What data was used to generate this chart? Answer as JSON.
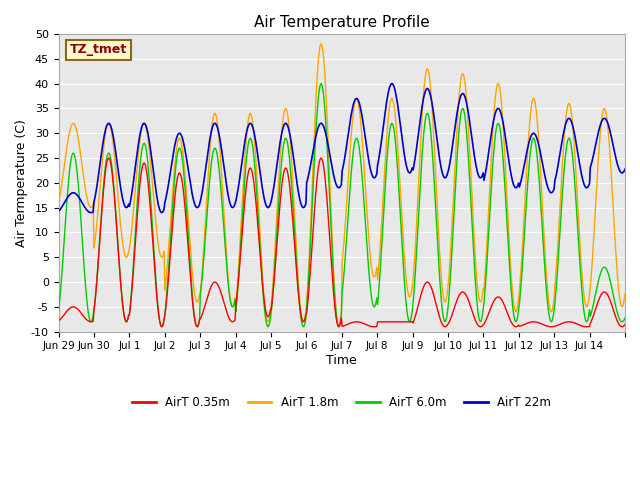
{
  "title": "Air Temperature Profile",
  "xlabel": "Time",
  "ylabel": "Air Termperature (C)",
  "ylim": [
    -10,
    50
  ],
  "n_days": 16,
  "annotation_text": "TZ_tmet",
  "annotation_color": "#8B0000",
  "annotation_bg": "#FFFACD",
  "annotation_border": "#8B6914",
  "legend_labels": [
    "AirT 0.35m",
    "AirT 1.8m",
    "AirT 6.0m",
    "AirT 22m"
  ],
  "colors": {
    "red": "#FF0000",
    "orange": "#FFA500",
    "green": "#00CC00",
    "blue": "#0000CC"
  },
  "bg_color": "#E8E8E8",
  "grid_color": "#FFFFFF",
  "xtick_positions": [
    0,
    1,
    2,
    3,
    4,
    5,
    6,
    7,
    8,
    9,
    10,
    11,
    12,
    13,
    14,
    15,
    16
  ],
  "xtick_labels": [
    "Jun 29",
    "Jun 30",
    "Jul 1",
    "Jul 2",
    "Jul 3",
    "Jul 4",
    "Jul 5",
    "Jul 6",
    "Jul 7",
    "Jul 8",
    "Jul 9",
    "Jul 10",
    "Jul 11",
    "Jul 12",
    "Jul 13",
    "Jul 14",
    ""
  ],
  "ytick_vals": [
    -10,
    -5,
    0,
    5,
    10,
    15,
    20,
    25,
    30,
    35,
    40,
    45,
    50
  ],
  "day_peaks_035": [
    -5,
    25,
    24,
    22,
    0,
    23,
    23,
    25,
    -8,
    -8,
    0,
    -2,
    -3,
    -8,
    -8,
    -2
  ],
  "day_peaks_18": [
    32,
    32,
    32,
    29,
    34,
    34,
    35,
    48,
    37,
    37,
    43,
    42,
    40,
    37,
    36,
    35
  ],
  "day_peaks_60": [
    26,
    26,
    28,
    27,
    27,
    29,
    29,
    40,
    29,
    32,
    34,
    35,
    32,
    29,
    29,
    3
  ],
  "day_peaks_22m": [
    18,
    32,
    32,
    30,
    32,
    32,
    32,
    32,
    37,
    40,
    39,
    38,
    35,
    30,
    33,
    33
  ],
  "day_mins_035": [
    -8,
    -8,
    -9,
    -9,
    -8,
    -7,
    -8,
    -9,
    -9,
    -8,
    -9,
    -9,
    -9,
    -9,
    -9,
    -9
  ],
  "day_mins_18": [
    15,
    5,
    5,
    -4,
    -5,
    -8,
    -8,
    -9,
    1,
    -3,
    -4,
    -4,
    -6,
    -6,
    -5,
    -5
  ],
  "day_mins_60": [
    -8,
    -8,
    -9,
    -9,
    -5,
    -9,
    -9,
    -9,
    -5,
    -8,
    -8,
    -8,
    -8,
    -8,
    -8,
    -8
  ],
  "day_mins_22m": [
    14,
    15,
    14,
    15,
    15,
    15,
    15,
    19,
    21,
    22,
    21,
    21,
    19,
    18,
    19,
    22
  ]
}
